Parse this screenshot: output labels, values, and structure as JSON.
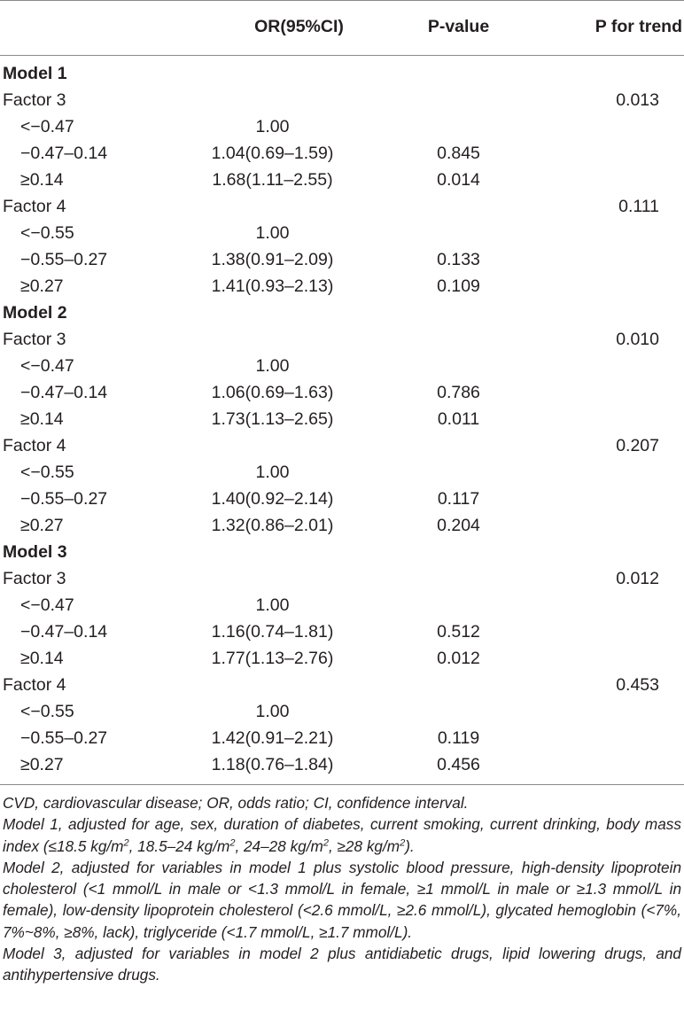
{
  "header": {
    "col_or": "OR(95%CI)",
    "col_p": "P-value",
    "col_trend": "P for trend"
  },
  "rows": [
    {
      "type": "model",
      "label": "Model 1",
      "or": "",
      "p": "",
      "trend": ""
    },
    {
      "type": "factor",
      "label": "Factor 3",
      "or": "",
      "p": "",
      "trend": "0.013"
    },
    {
      "type": "level",
      "label": "<−0.47",
      "or": "1.00",
      "p": "",
      "trend": ""
    },
    {
      "type": "level",
      "label": "−0.47–0.14",
      "or": "1.04(0.69–1.59)",
      "p": "0.845",
      "trend": ""
    },
    {
      "type": "level",
      "label": "≥0.14",
      "or": "1.68(1.11–2.55)",
      "p": "0.014",
      "trend": ""
    },
    {
      "type": "factor",
      "label": "Factor 4",
      "or": "",
      "p": "",
      "trend": "0.111"
    },
    {
      "type": "level",
      "label": "<−0.55",
      "or": "1.00",
      "p": "",
      "trend": ""
    },
    {
      "type": "level",
      "label": "−0.55–0.27",
      "or": "1.38(0.91–2.09)",
      "p": "0.133",
      "trend": ""
    },
    {
      "type": "level",
      "label": "≥0.27",
      "or": "1.41(0.93–2.13)",
      "p": "0.109",
      "trend": ""
    },
    {
      "type": "model",
      "label": "Model 2",
      "or": "",
      "p": "",
      "trend": ""
    },
    {
      "type": "factor",
      "label": "Factor 3",
      "or": "",
      "p": "",
      "trend": "0.010"
    },
    {
      "type": "level",
      "label": "<−0.47",
      "or": "1.00",
      "p": "",
      "trend": ""
    },
    {
      "type": "level",
      "label": "−0.47–0.14",
      "or": "1.06(0.69–1.63)",
      "p": "0.786",
      "trend": ""
    },
    {
      "type": "level",
      "label": "≥0.14",
      "or": "1.73(1.13–2.65)",
      "p": "0.011",
      "trend": ""
    },
    {
      "type": "factor",
      "label": "Factor 4",
      "or": "",
      "p": "",
      "trend": "0.207"
    },
    {
      "type": "level",
      "label": "<−0.55",
      "or": "1.00",
      "p": "",
      "trend": ""
    },
    {
      "type": "level",
      "label": "−0.55–0.27",
      "or": "1.40(0.92–2.14)",
      "p": "0.117",
      "trend": ""
    },
    {
      "type": "level",
      "label": "≥0.27",
      "or": "1.32(0.86–2.01)",
      "p": "0.204",
      "trend": ""
    },
    {
      "type": "model",
      "label": "Model 3",
      "or": "",
      "p": "",
      "trend": ""
    },
    {
      "type": "factor",
      "label": "Factor 3",
      "or": "",
      "p": "",
      "trend": "0.012"
    },
    {
      "type": "level",
      "label": "<−0.47",
      "or": "1.00",
      "p": "",
      "trend": ""
    },
    {
      "type": "level",
      "label": "−0.47–0.14",
      "or": "1.16(0.74–1.81)",
      "p": "0.512",
      "trend": ""
    },
    {
      "type": "level",
      "label": "≥0.14",
      "or": "1.77(1.13–2.76)",
      "p": "0.012",
      "trend": ""
    },
    {
      "type": "factor",
      "label": "Factor 4",
      "or": "",
      "p": "",
      "trend": "0.453"
    },
    {
      "type": "level",
      "label": "<−0.55",
      "or": "1.00",
      "p": "",
      "trend": ""
    },
    {
      "type": "level",
      "label": "−0.55–0.27",
      "or": "1.42(0.91–2.21)",
      "p": "0.119",
      "trend": ""
    },
    {
      "type": "level",
      "label": "≥0.27",
      "or": "1.18(0.76–1.84)",
      "p": "0.456",
      "trend": ""
    }
  ],
  "footnotes": {
    "abbrev": "CVD, cardiovascular disease; OR, odds ratio; CI, confidence interval.",
    "model1": {
      "a": "Model 1, adjusted for age, sex, duration of diabetes, current smoking, current drinking, body mass index (≤18.5 kg/m",
      "s1": "2",
      "b": ", 18.5–24 kg/m",
      "s2": "2",
      "c": ", 24–28 kg/m",
      "s3": "2",
      "d": ", ≥28 kg/m",
      "s4": "2",
      "e": ")."
    },
    "model2": "Model 2, adjusted for variables in model 1 plus systolic blood pressure, high-density lipoprotein cholesterol (<1 mmol/L in male or <1.3 mmol/L in female, ≥1 mmol/L in male or ≥1.3 mmol/L in female), low-density lipoprotein cholesterol (<2.6 mmol/L, ≥2.6 mmol/L), glycated hemoglobin (<7%, 7%~8%, ≥8%, lack), triglyceride (<1.7 mmol/L, ≥1.7 mmol/L).",
    "model3": "Model 3, adjusted for variables in model 2 plus antidiabetic drugs, lipid lowering drugs, and antihypertensive drugs."
  }
}
